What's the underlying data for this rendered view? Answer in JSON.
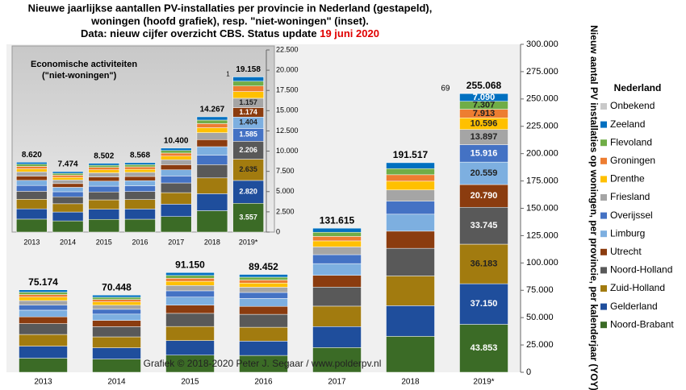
{
  "chart_data": [
    {
      "type": "bar",
      "title": [
        "Nieuwe jaarlijkse aantallen PV-installaties per provincie in Nederland (gestapeld),",
        "woningen (hoofd grafiek), resp. \"niet-woningen\" (inset).",
        "Data: nieuw cijfer overzicht CBS. Status update "
      ],
      "title_highlight": "19 juni 2020",
      "ylabel": "Nieuw aantal  PV installaties op woningen, per provincie, per kalenderjaar (YOY)",
      "legend_title": "Nederland",
      "credit": "Grafiek © 2018-2020 Peter J. Segaar / www.polderpv.nl",
      "categories": [
        "2013",
        "2014",
        "2015",
        "2016",
        "2017",
        "2018",
        "2019*"
      ],
      "totals": [
        75174,
        70448,
        91150,
        89452,
        131615,
        191517,
        255068
      ],
      "total_labels": [
        "75.174",
        "70.448",
        "91.150",
        "89.452",
        "131.615",
        "191.517",
        "255.068"
      ],
      "ylim": [
        0,
        300000
      ],
      "yticks": [
        0,
        {
          "value": 25000,
          "label": "25.000"
        },
        {
          "value": 50000,
          "label": "50.000"
        },
        {
          "value": 75000,
          "label": "75.000"
        },
        {
          "value": 100000,
          "label": "100.000"
        },
        {
          "value": 125000,
          "label": "125.000"
        },
        {
          "value": 150000,
          "label": "150.000"
        },
        {
          "value": 175000,
          "label": "175.000"
        },
        {
          "value": 200000,
          "label": "200.000"
        },
        {
          "value": 225000,
          "label": "225.000"
        },
        {
          "value": 250000,
          "label": "250.000"
        },
        {
          "value": 275000,
          "label": "275.000"
        },
        {
          "value": 300000,
          "label": "300.000"
        }
      ],
      "series": [
        {
          "name": "Noord-Brabant",
          "color": "#3b6b26",
          "values": [
            12900,
            12100,
            15700,
            15400,
            22600,
            32900,
            43853
          ],
          "value_labels": [
            null,
            null,
            null,
            null,
            null,
            null,
            "43.853"
          ]
        },
        {
          "name": "Gelderland",
          "color": "#1f4e9c",
          "values": [
            11000,
            10300,
            13300,
            13100,
            19200,
            28000,
            37150
          ],
          "value_labels": [
            null,
            null,
            null,
            null,
            null,
            null,
            "37.150"
          ]
        },
        {
          "name": "Zuid-Holland",
          "color": "#a27b0f",
          "values": [
            10700,
            10000,
            12900,
            12700,
            18700,
            27200,
            36183
          ],
          "value_labels": [
            null,
            null,
            null,
            null,
            null,
            null,
            "36.183"
          ]
        },
        {
          "name": "Noord-Holland",
          "color": "#595959",
          "values": [
            9900,
            9300,
            12000,
            11800,
            17400,
            25300,
            33745
          ],
          "value_labels": [
            null,
            null,
            null,
            null,
            null,
            null,
            "33.745"
          ]
        },
        {
          "name": "Utrecht",
          "color": "#8b3c0f",
          "values": [
            6200,
            5800,
            7500,
            7300,
            10800,
            15700,
            20790
          ],
          "value_labels": [
            null,
            null,
            null,
            null,
            null,
            null,
            "20.790"
          ]
        },
        {
          "name": "Limburg",
          "color": "#7dafe0",
          "values": [
            6100,
            5700,
            7400,
            7200,
            10700,
            15500,
            20559
          ],
          "value_labels": [
            null,
            null,
            null,
            null,
            null,
            null,
            "20.559"
          ]
        },
        {
          "name": "Overijssel",
          "color": "#4472c4",
          "values": [
            4700,
            4400,
            5700,
            5500,
            8200,
            11900,
            15916
          ],
          "value_labels": [
            null,
            null,
            null,
            null,
            null,
            null,
            "15.916"
          ]
        },
        {
          "name": "Friesland",
          "color": "#a5a5a5",
          "values": [
            4100,
            3800,
            4900,
            4800,
            7100,
            10300,
            13897
          ],
          "value_labels": [
            null,
            null,
            null,
            null,
            null,
            null,
            "13.897"
          ]
        },
        {
          "name": "Drenthe",
          "color": "#ffc000",
          "values": [
            3200,
            3000,
            3800,
            3800,
            5500,
            8000,
            10596
          ],
          "value_labels": [
            null,
            null,
            null,
            null,
            null,
            null,
            "10.596"
          ]
        },
        {
          "name": "Groningen",
          "color": "#ed7d31",
          "values": [
            2300,
            2200,
            2800,
            2800,
            4100,
            5900,
            7913
          ],
          "value_labels": [
            null,
            null,
            null,
            null,
            null,
            null,
            "7.913"
          ]
        },
        {
          "name": "Flevoland",
          "color": "#70ad47",
          "values": [
            2200,
            2000,
            2600,
            2600,
            3800,
            5600,
            7307
          ],
          "value_labels": [
            null,
            null,
            null,
            null,
            null,
            null,
            "7.307"
          ]
        },
        {
          "name": "Zeeland",
          "color": "#0070c0",
          "values": [
            2100,
            2000,
            2600,
            2500,
            3700,
            5400,
            7090
          ],
          "value_labels": [
            null,
            null,
            null,
            null,
            null,
            null,
            "7.090"
          ]
        },
        {
          "name": "Onbekend",
          "color": "#c9c9c9",
          "values": [
            0,
            0,
            0,
            0,
            0,
            0,
            69
          ]
        }
      ]
    },
    {
      "type": "bar",
      "title": [
        "Economische activiteiten",
        "(\"niet-woningen\")"
      ],
      "categories": [
        "2013",
        "2014",
        "2015",
        "2016",
        "2017",
        "2018",
        "2019*"
      ],
      "totals": [
        8620,
        7474,
        8502,
        8568,
        10400,
        14267,
        19158
      ],
      "total_labels": [
        "8.620",
        "7.474",
        "8.502",
        "8.568",
        "10.400",
        "14.267",
        "19.158"
      ],
      "ylim": [
        0,
        22500
      ],
      "yticks": [
        0,
        {
          "value": 2500,
          "label": "2.500"
        },
        {
          "value": 5000,
          "label": "5.000"
        },
        {
          "value": 7500,
          "label": "7.500"
        },
        {
          "value": 10000,
          "label": "10.000"
        },
        {
          "value": 12500,
          "label": "12.500"
        },
        {
          "value": 15000,
          "label": "15.000"
        },
        {
          "value": 17500,
          "label": "17.500"
        },
        {
          "value": 20000,
          "label": "20.000"
        },
        {
          "value": 22500,
          "label": "22.500"
        }
      ],
      "series": [
        {
          "color": "#3b6b26",
          "values": [
            1600,
            1380,
            1570,
            1590,
            1920,
            2640,
            3557
          ],
          "value_labels": [
            null,
            null,
            null,
            null,
            null,
            null,
            "3.557"
          ]
        },
        {
          "color": "#1f4e9c",
          "values": [
            1270,
            1100,
            1250,
            1260,
            1530,
            2100,
            2820
          ],
          "value_labels": [
            null,
            null,
            null,
            null,
            null,
            null,
            "2.820"
          ]
        },
        {
          "color": "#a27b0f",
          "values": [
            1180,
            1020,
            1160,
            1170,
            1420,
            1950,
            2635
          ],
          "value_labels": [
            null,
            null,
            null,
            null,
            null,
            null,
            "2.635"
          ]
        },
        {
          "color": "#595959",
          "values": [
            990,
            860,
            980,
            990,
            1200,
            1640,
            2206
          ],
          "value_labels": [
            null,
            null,
            null,
            null,
            null,
            null,
            "2.206"
          ]
        },
        {
          "color": "#4472c4",
          "values": [
            720,
            620,
            710,
            710,
            860,
            1180,
            1585
          ],
          "value_labels": [
            null,
            null,
            null,
            null,
            null,
            null,
            "1.585"
          ]
        },
        {
          "color": "#7dafe0",
          "values": [
            630,
            550,
            620,
            630,
            760,
            1040,
            1404
          ],
          "value_labels": [
            null,
            null,
            null,
            null,
            null,
            null,
            "1.404"
          ]
        },
        {
          "color": "#8b3c0f",
          "values": [
            530,
            460,
            520,
            520,
            630,
            870,
            1174
          ],
          "value_labels": [
            null,
            null,
            null,
            null,
            null,
            null,
            "1.174"
          ]
        },
        {
          "color": "#a5a5a5",
          "values": [
            520,
            450,
            510,
            510,
            620,
            860,
            1157
          ],
          "value_labels": [
            null,
            null,
            null,
            null,
            null,
            null,
            "1.157"
          ]
        },
        {
          "color": "#ffc000",
          "values": [
            370,
            320,
            370,
            370,
            450,
            610,
            826
          ]
        },
        {
          "color": "#ed7d31",
          "values": [
            310,
            270,
            310,
            310,
            370,
            510,
            684
          ]
        },
        {
          "color": "#70ad47",
          "values": [
            270,
            230,
            260,
            270,
            320,
            440,
            589
          ]
        },
        {
          "color": "#0070c0",
          "values": [
            240,
            210,
            240,
            240,
            290,
            400,
            543
          ]
        },
        {
          "color": "#c9c9c9",
          "values": [
            0,
            0,
            0,
            0,
            0,
            0,
            1
          ]
        }
      ]
    }
  ]
}
